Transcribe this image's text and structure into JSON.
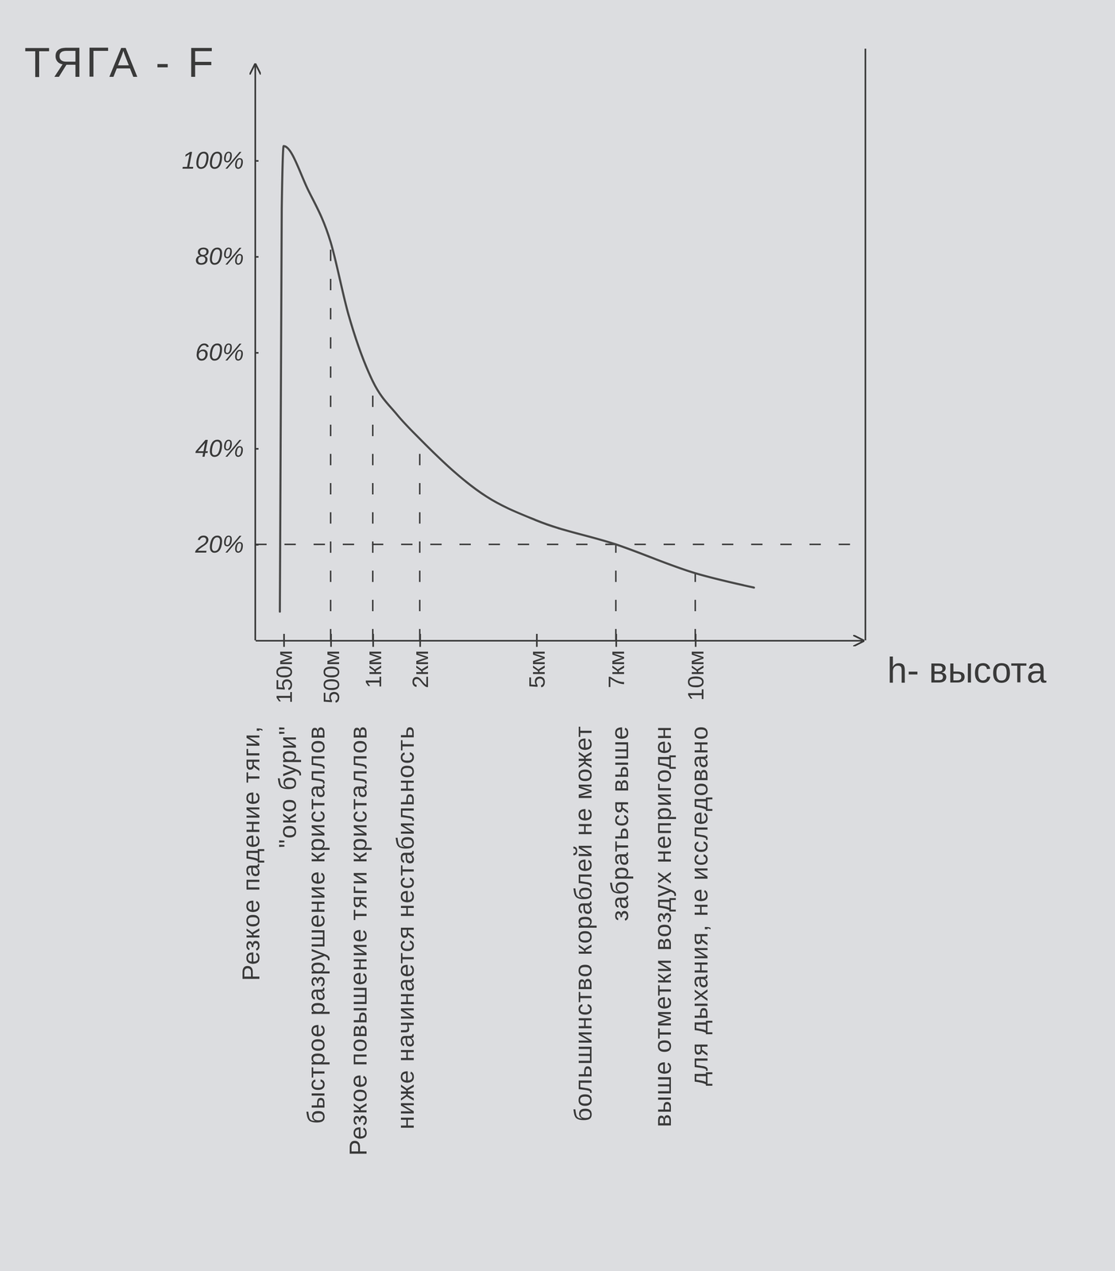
{
  "chart_data": {
    "type": "line",
    "title": "ТЯГА - F",
    "x_label": "h- высота",
    "x": [
      0.13,
      0.14,
      0.15,
      0.33,
      0.5,
      0.71,
      1,
      1.52,
      2,
      3.71,
      5,
      7,
      10,
      11.4
    ],
    "values": [
      6,
      90,
      103,
      94,
      83,
      68,
      54,
      47,
      42,
      30,
      25,
      20,
      14,
      11
    ],
    "color": "#4a4a4a",
    "xlim": [
      0,
      14
    ],
    "xticks": [
      {
        "value": 0.15,
        "label": "150м"
      },
      {
        "value": 0.5,
        "label": "500м"
      },
      {
        "value": 1,
        "label": "1км"
      },
      {
        "value": 2,
        "label": "2км"
      },
      {
        "value": 5,
        "label": "5км"
      },
      {
        "value": 7,
        "label": "7км"
      },
      {
        "value": 10,
        "label": "10км"
      }
    ],
    "ylim": [
      0,
      120
    ],
    "yticks": [
      {
        "value": 20,
        "label": "20%"
      },
      {
        "value": 40,
        "label": "40%"
      },
      {
        "value": 60,
        "label": "60%"
      },
      {
        "value": 80,
        "label": "80%"
      },
      {
        "value": 100,
        "label": "100%"
      }
    ],
    "reference_lines": {
      "x": [
        0.5,
        1,
        2,
        7,
        10
      ],
      "y": [
        20
      ]
    },
    "annotations": [
      {
        "x": 0.15,
        "text": [
          "Резкое падение тяги,",
          "\"око бури\""
        ]
      },
      {
        "x": 0.5,
        "text": [
          "быстрое разрушение кристаллов"
        ]
      },
      {
        "x": 1,
        "text": [
          "Резкое повышение тяги кристаллов"
        ]
      },
      {
        "x": 2,
        "text": [
          "ниже начинается нестабильность"
        ]
      },
      {
        "x": 7,
        "text": [
          "большинство кораблей не может",
          "забраться выше"
        ]
      },
      {
        "x": 10,
        "text": [
          "выше отметки воздух непригоден",
          "для дыхания, не исследовано"
        ]
      }
    ],
    "grid": false,
    "line_style": "solid",
    "marker": "none"
  }
}
